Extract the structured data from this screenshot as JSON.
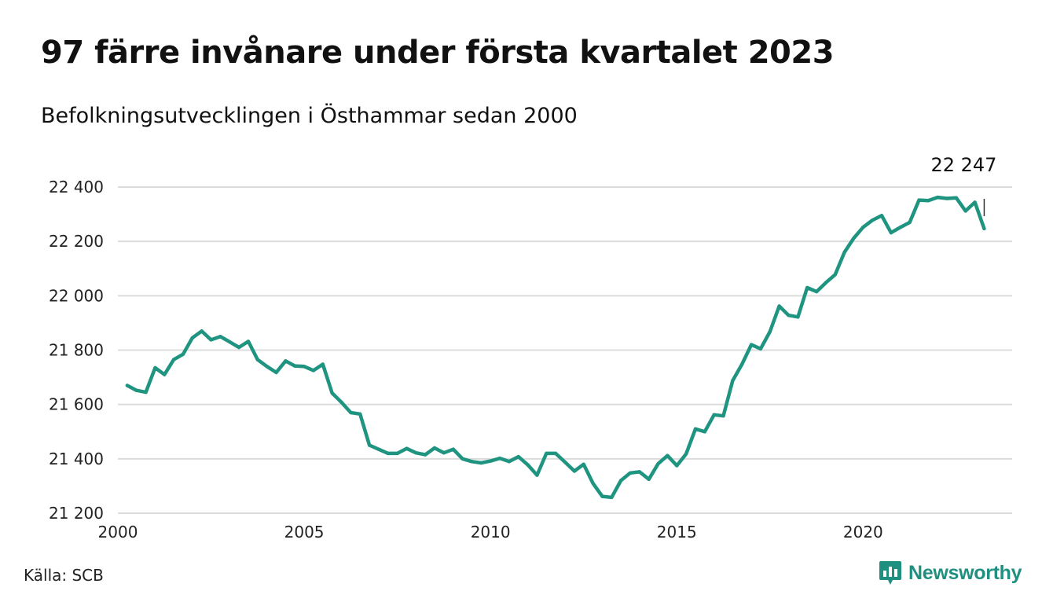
{
  "header": {
    "title": "97 färre invånare under första kvartalet 2023",
    "subtitle": "Befolkningsutvecklingen i Östhammar sedan 2000"
  },
  "footer": {
    "source": "Källa: SCB",
    "brand": "Newsworthy",
    "brand_icon": "bar-chart-speech-bubble-icon"
  },
  "colors": {
    "line": "#1f9480",
    "grid": "#dcdcdc",
    "brand": "#1f8f7f"
  },
  "chart_data": {
    "type": "line",
    "title": "97 färre invånare under första kvartalet 2023",
    "subtitle": "Befolkningsutvecklingen i Östhammar sedan 2000",
    "xlabel": "",
    "ylabel": "",
    "xlim": [
      2000,
      2024
    ],
    "ylim": [
      21200,
      22400
    ],
    "x_ticks": [
      2000,
      2005,
      2010,
      2015,
      2020
    ],
    "x_tick_labels": [
      "2000",
      "2005",
      "2010",
      "2015",
      "2020"
    ],
    "y_ticks": [
      21200,
      21400,
      21600,
      21800,
      22000,
      22200,
      22400
    ],
    "y_tick_labels": [
      "21 200",
      "21 400",
      "21 600",
      "21 800",
      "22 000",
      "22 200",
      "22 400"
    ],
    "grid": true,
    "legend": "none",
    "annotation": {
      "x": 2023.25,
      "y": 22247,
      "label": "22 247"
    },
    "series": [
      {
        "x": [
          2000.25,
          2000.5,
          2000.75,
          2001.0,
          2001.25,
          2001.5,
          2001.75,
          2002.0,
          2002.25,
          2002.5,
          2002.75,
          2003.0,
          2003.25,
          2003.5,
          2003.75,
          2004.0,
          2004.25,
          2004.5,
          2004.75,
          2005.0,
          2005.25,
          2005.5,
          2005.75,
          2006.0,
          2006.25,
          2006.5,
          2006.75,
          2007.0,
          2007.25,
          2007.5,
          2007.75,
          2008.0,
          2008.25,
          2008.5,
          2008.75,
          2009.0,
          2009.25,
          2009.5,
          2009.75,
          2010.0,
          2010.25,
          2010.5,
          2010.75,
          2011.0,
          2011.25,
          2011.5,
          2011.75,
          2012.0,
          2012.25,
          2012.5,
          2012.75,
          2013.0,
          2013.25,
          2013.5,
          2013.75,
          2014.0,
          2014.25,
          2014.5,
          2014.75,
          2015.0,
          2015.25,
          2015.5,
          2015.75,
          2016.0,
          2016.25,
          2016.5,
          2016.75,
          2017.0,
          2017.25,
          2017.5,
          2017.75,
          2018.0,
          2018.25,
          2018.5,
          2018.75,
          2019.0,
          2019.25,
          2019.5,
          2019.75,
          2020.0,
          2020.25,
          2020.5,
          2020.75,
          2021.0,
          2021.25,
          2021.5,
          2021.75,
          2022.0,
          2022.25,
          2022.5,
          2022.75,
          2023.0,
          2023.25
        ],
        "values": [
          21670,
          21652,
          21645,
          21735,
          21710,
          21765,
          21785,
          21845,
          21870,
          21838,
          21850,
          21830,
          21810,
          21832,
          21765,
          21740,
          21718,
          21760,
          21742,
          21740,
          21725,
          21748,
          21642,
          21608,
          21570,
          21565,
          21450,
          21435,
          21420,
          21420,
          21438,
          21422,
          21415,
          21440,
          21422,
          21435,
          21400,
          21390,
          21385,
          21392,
          21402,
          21390,
          21408,
          21378,
          21340,
          21420,
          21420,
          21388,
          21355,
          21380,
          21310,
          21262,
          21258,
          21320,
          21348,
          21352,
          21325,
          21382,
          21412,
          21375,
          21418,
          21510,
          21500,
          21562,
          21558,
          21688,
          21748,
          21820,
          21805,
          21868,
          21962,
          21928,
          21922,
          22030,
          22015,
          22048,
          22078,
          22160,
          22212,
          22252,
          22278,
          22295,
          22232,
          22252,
          22270,
          22352,
          22350,
          22362,
          22358,
          22360,
          22312,
          22344,
          22247
        ]
      }
    ]
  }
}
